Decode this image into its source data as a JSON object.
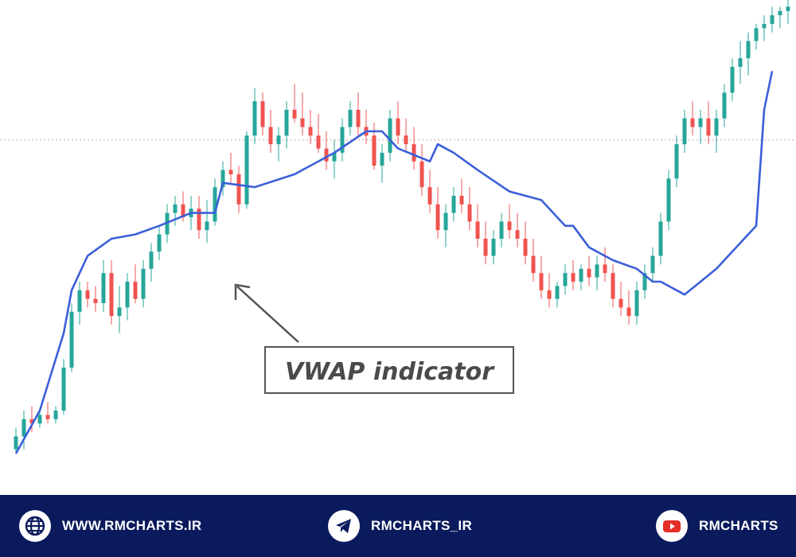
{
  "chart_data": {
    "type": "candlestick",
    "title": "",
    "xlabel": "",
    "ylabel": "",
    "grid": false,
    "ylim": [
      0,
      100
    ],
    "reference_level": 73,
    "annotation": {
      "text": "VWAP indicator",
      "points_to": "VWAP line"
    },
    "series": [
      {
        "name": "VWAP indicator",
        "kind": "line",
        "color": "#3b5fd9",
        "x": [
          0,
          3,
          6,
          7,
          9,
          12,
          15,
          18,
          22,
          25,
          26,
          30,
          35,
          40,
          44,
          46,
          48,
          52,
          53,
          55,
          58,
          62,
          66,
          69,
          70,
          72,
          75,
          78,
          80,
          81,
          84,
          88,
          93,
          94,
          95
        ],
        "values": [
          0,
          10,
          28,
          38,
          46,
          50,
          51,
          53,
          56,
          56,
          63,
          62,
          65,
          70,
          75,
          75,
          71,
          68,
          72,
          70,
          66,
          61,
          59,
          53,
          53,
          48,
          45,
          43,
          40,
          40,
          37,
          43,
          53,
          80,
          89
        ]
      }
    ],
    "candles": {
      "up_color": "#26a69a",
      "down_color": "#ef5350",
      "x": [
        0,
        1,
        2,
        3,
        4,
        5,
        6,
        7,
        8,
        9,
        10,
        11,
        12,
        13,
        14,
        15,
        16,
        17,
        18,
        19,
        20,
        21,
        22,
        23,
        24,
        25,
        26,
        27,
        28,
        29,
        30,
        31,
        32,
        33,
        34,
        35,
        36,
        37,
        38,
        39,
        40,
        41,
        42,
        43,
        44,
        45,
        46,
        47,
        48,
        49,
        50,
        51,
        52,
        53,
        54,
        55,
        56,
        57,
        58,
        59,
        60,
        61,
        62,
        63,
        64,
        65,
        66,
        67,
        68,
        69,
        70,
        71,
        72,
        73,
        74,
        75,
        76,
        77,
        78,
        79,
        80,
        81,
        82,
        83,
        84,
        85,
        86,
        87,
        88,
        89,
        90,
        91,
        92,
        93,
        94,
        95,
        96,
        97
      ],
      "ohlc": [
        [
          1,
          6,
          0,
          4
        ],
        [
          4,
          10,
          1,
          8
        ],
        [
          8,
          11,
          5,
          7
        ],
        [
          7,
          10,
          6,
          9
        ],
        [
          9,
          12,
          7,
          8
        ],
        [
          8,
          11,
          7,
          10
        ],
        [
          10,
          22,
          9,
          20
        ],
        [
          20,
          35,
          19,
          33
        ],
        [
          33,
          40,
          30,
          38
        ],
        [
          38,
          40,
          34,
          36
        ],
        [
          36,
          39,
          33,
          35
        ],
        [
          35,
          45,
          33,
          42
        ],
        [
          42,
          45,
          30,
          32
        ],
        [
          32,
          39,
          28,
          34
        ],
        [
          34,
          42,
          31,
          40
        ],
        [
          40,
          44,
          35,
          36
        ],
        [
          36,
          45,
          34,
          43
        ],
        [
          43,
          49,
          40,
          47
        ],
        [
          47,
          53,
          45,
          51
        ],
        [
          51,
          58,
          49,
          56
        ],
        [
          56,
          60,
          53,
          58
        ],
        [
          58,
          61,
          54,
          55
        ],
        [
          55,
          60,
          52,
          57
        ],
        [
          57,
          60,
          50,
          52
        ],
        [
          52,
          59,
          49,
          54
        ],
        [
          54,
          64,
          53,
          62
        ],
        [
          62,
          68,
          60,
          66
        ],
        [
          66,
          70,
          63,
          65
        ],
        [
          65,
          67,
          56,
          58
        ],
        [
          58,
          75,
          57,
          74
        ],
        [
          74,
          85,
          72,
          82
        ],
        [
          82,
          84,
          74,
          76
        ],
        [
          76,
          80,
          70,
          72
        ],
        [
          72,
          76,
          68,
          74
        ],
        [
          74,
          82,
          71,
          80
        ],
        [
          80,
          86,
          77,
          78
        ],
        [
          78,
          84,
          74,
          76
        ],
        [
          76,
          80,
          72,
          74
        ],
        [
          74,
          79,
          70,
          71
        ],
        [
          71,
          75,
          66,
          68
        ],
        [
          68,
          73,
          64,
          70
        ],
        [
          70,
          78,
          68,
          76
        ],
        [
          76,
          82,
          74,
          80
        ],
        [
          80,
          84,
          74,
          76
        ],
        [
          76,
          80,
          72,
          74
        ],
        [
          74,
          77,
          66,
          67
        ],
        [
          67,
          72,
          63,
          70
        ],
        [
          70,
          80,
          68,
          78
        ],
        [
          78,
          82,
          72,
          74
        ],
        [
          74,
          78,
          70,
          72
        ],
        [
          72,
          76,
          66,
          68
        ],
        [
          68,
          72,
          60,
          62
        ],
        [
          62,
          66,
          56,
          58
        ],
        [
          58,
          62,
          50,
          52
        ],
        [
          52,
          58,
          48,
          56
        ],
        [
          56,
          62,
          54,
          60
        ],
        [
          60,
          64,
          56,
          58
        ],
        [
          58,
          62,
          52,
          54
        ],
        [
          54,
          58,
          48,
          50
        ],
        [
          50,
          54,
          44,
          46
        ],
        [
          46,
          52,
          44,
          50
        ],
        [
          50,
          56,
          48,
          54
        ],
        [
          54,
          58,
          50,
          52
        ],
        [
          52,
          56,
          48,
          50
        ],
        [
          50,
          54,
          44,
          46
        ],
        [
          46,
          50,
          40,
          42
        ],
        [
          42,
          46,
          36,
          38
        ],
        [
          38,
          42,
          34,
          36
        ],
        [
          36,
          40,
          34,
          39
        ],
        [
          39,
          44,
          37,
          42
        ],
        [
          42,
          45,
          38,
          40
        ],
        [
          40,
          44,
          38,
          43
        ],
        [
          43,
          46,
          39,
          41
        ],
        [
          41,
          46,
          38,
          44
        ],
        [
          44,
          48,
          40,
          42
        ],
        [
          42,
          44,
          34,
          36
        ],
        [
          36,
          40,
          32,
          34
        ],
        [
          34,
          38,
          30,
          32
        ],
        [
          32,
          40,
          30,
          38
        ],
        [
          38,
          44,
          36,
          42
        ],
        [
          42,
          48,
          40,
          46
        ],
        [
          46,
          56,
          44,
          54
        ],
        [
          54,
          66,
          52,
          64
        ],
        [
          64,
          74,
          62,
          72
        ],
        [
          72,
          80,
          70,
          78
        ],
        [
          78,
          82,
          74,
          76
        ],
        [
          76,
          80,
          72,
          78
        ],
        [
          78,
          82,
          72,
          74
        ],
        [
          74,
          80,
          70,
          78
        ],
        [
          78,
          86,
          76,
          84
        ],
        [
          84,
          92,
          82,
          90
        ],
        [
          90,
          96,
          86,
          92
        ],
        [
          92,
          98,
          88,
          96
        ],
        [
          96,
          100,
          94,
          99
        ],
        [
          99,
          102,
          96,
          100
        ],
        [
          100,
          104,
          98,
          102
        ],
        [
          102,
          104,
          99,
          103
        ],
        [
          103,
          106,
          100,
          104
        ]
      ]
    }
  },
  "footer": {
    "background": "#0a1a5c",
    "items": [
      {
        "icon": "globe-icon",
        "label": "WWW.RMCHARTS.IR"
      },
      {
        "icon": "telegram-icon",
        "label": "RMCHARTS_IR"
      },
      {
        "icon": "youtube-icon",
        "label": "RMCHARTS"
      }
    ]
  }
}
